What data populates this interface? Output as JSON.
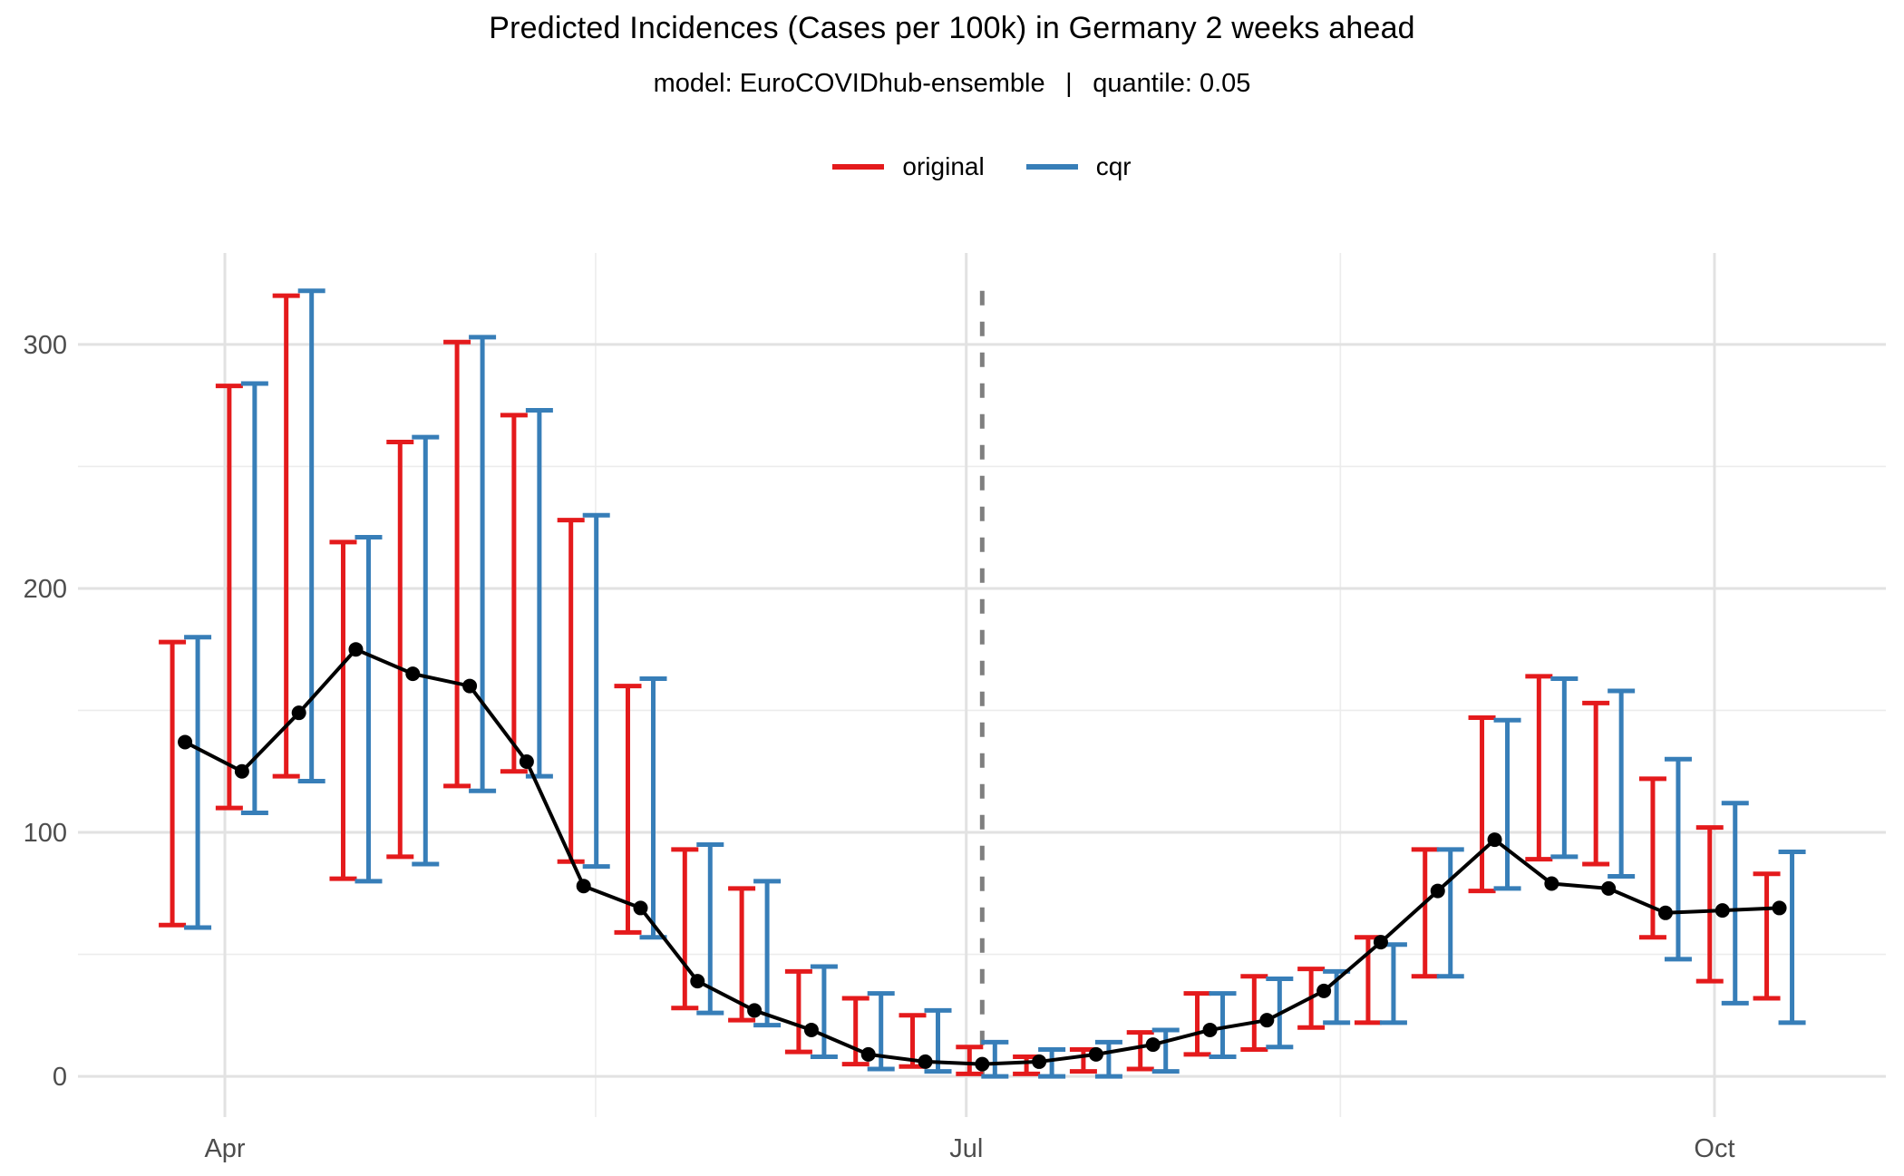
{
  "chart_data": {
    "type": "line",
    "title": "Predicted Incidences (Cases per 100k) in Germany 2 weeks ahead",
    "subtitle": "model: EuroCOVIDhub-ensemble  |  quantile: 0.05",
    "legend": {
      "position": "top-center",
      "items": [
        {
          "label": "original",
          "color": "#E41A1C"
        },
        {
          "label": "cqr",
          "color": "#377EB8"
        }
      ]
    },
    "x_axis": {
      "tick_labels": [
        "Apr",
        "Jul",
        "Oct"
      ],
      "tick_weeks": [
        0.7,
        13.72,
        26.86
      ],
      "minor_tick_weeks": [
        7.21,
        20.29
      ],
      "xlim_weeks": [
        -1.88,
        29.87
      ]
    },
    "y_axis": {
      "ticks": [
        0,
        100,
        200,
        300
      ],
      "minor_ticks": [
        50,
        150,
        250
      ],
      "ylim": [
        -16.7,
        337.5
      ]
    },
    "x_weeks": [
      0,
      1,
      2,
      3,
      4,
      5,
      6,
      7,
      8,
      9,
      10,
      11,
      12,
      13,
      14,
      15,
      16,
      17,
      18,
      19,
      20,
      21,
      22,
      23,
      24,
      25,
      26,
      27,
      28
    ],
    "series": [
      {
        "name": "observed",
        "style": "points-and-line",
        "color": "#000000",
        "values": [
          137,
          125,
          149,
          175,
          165,
          160,
          129,
          78,
          69,
          39,
          27,
          19,
          9,
          6,
          5,
          6,
          9,
          13,
          19,
          23,
          35,
          55,
          76,
          97,
          79,
          77,
          67,
          68,
          69
        ]
      },
      {
        "name": "original",
        "style": "errorbar",
        "color": "#E41A1C",
        "lower": [
          62,
          110,
          123,
          81,
          90,
          119,
          125,
          88,
          59,
          28,
          23,
          10,
          5,
          4,
          1,
          1,
          2,
          3,
          9,
          11,
          20,
          22,
          41,
          76,
          89,
          87,
          57,
          39,
          32
        ],
        "upper": [
          178,
          283,
          320,
          219,
          260,
          301,
          271,
          228,
          160,
          93,
          77,
          43,
          32,
          25,
          12,
          8,
          11,
          18,
          34,
          41,
          44,
          57,
          93,
          147,
          164,
          153,
          122,
          102,
          83
        ]
      },
      {
        "name": "cqr",
        "style": "errorbar",
        "color": "#377EB8",
        "lower": [
          61,
          108,
          121,
          80,
          87,
          117,
          123,
          86,
          57,
          26,
          21,
          8,
          3,
          2,
          0,
          0,
          0,
          2,
          8,
          12,
          22,
          22,
          41,
          77,
          90,
          82,
          48,
          30,
          22
        ],
        "upper": [
          180,
          284,
          322,
          221,
          262,
          303,
          273,
          230,
          163,
          95,
          80,
          45,
          34,
          27,
          14,
          11,
          14,
          19,
          34,
          40,
          43,
          54,
          93,
          146,
          163,
          158,
          130,
          112,
          92
        ]
      }
    ],
    "vline": {
      "x_week": 14,
      "style": "dashed",
      "color": "#7F7F7F",
      "value_top": 322,
      "value_bottom": -1
    },
    "grid": {
      "major_color": "#E2E2E2",
      "minor_color": "#ECECEC",
      "background": "#FFFFFF"
    },
    "axis_text_color": "#4D4D4D"
  }
}
